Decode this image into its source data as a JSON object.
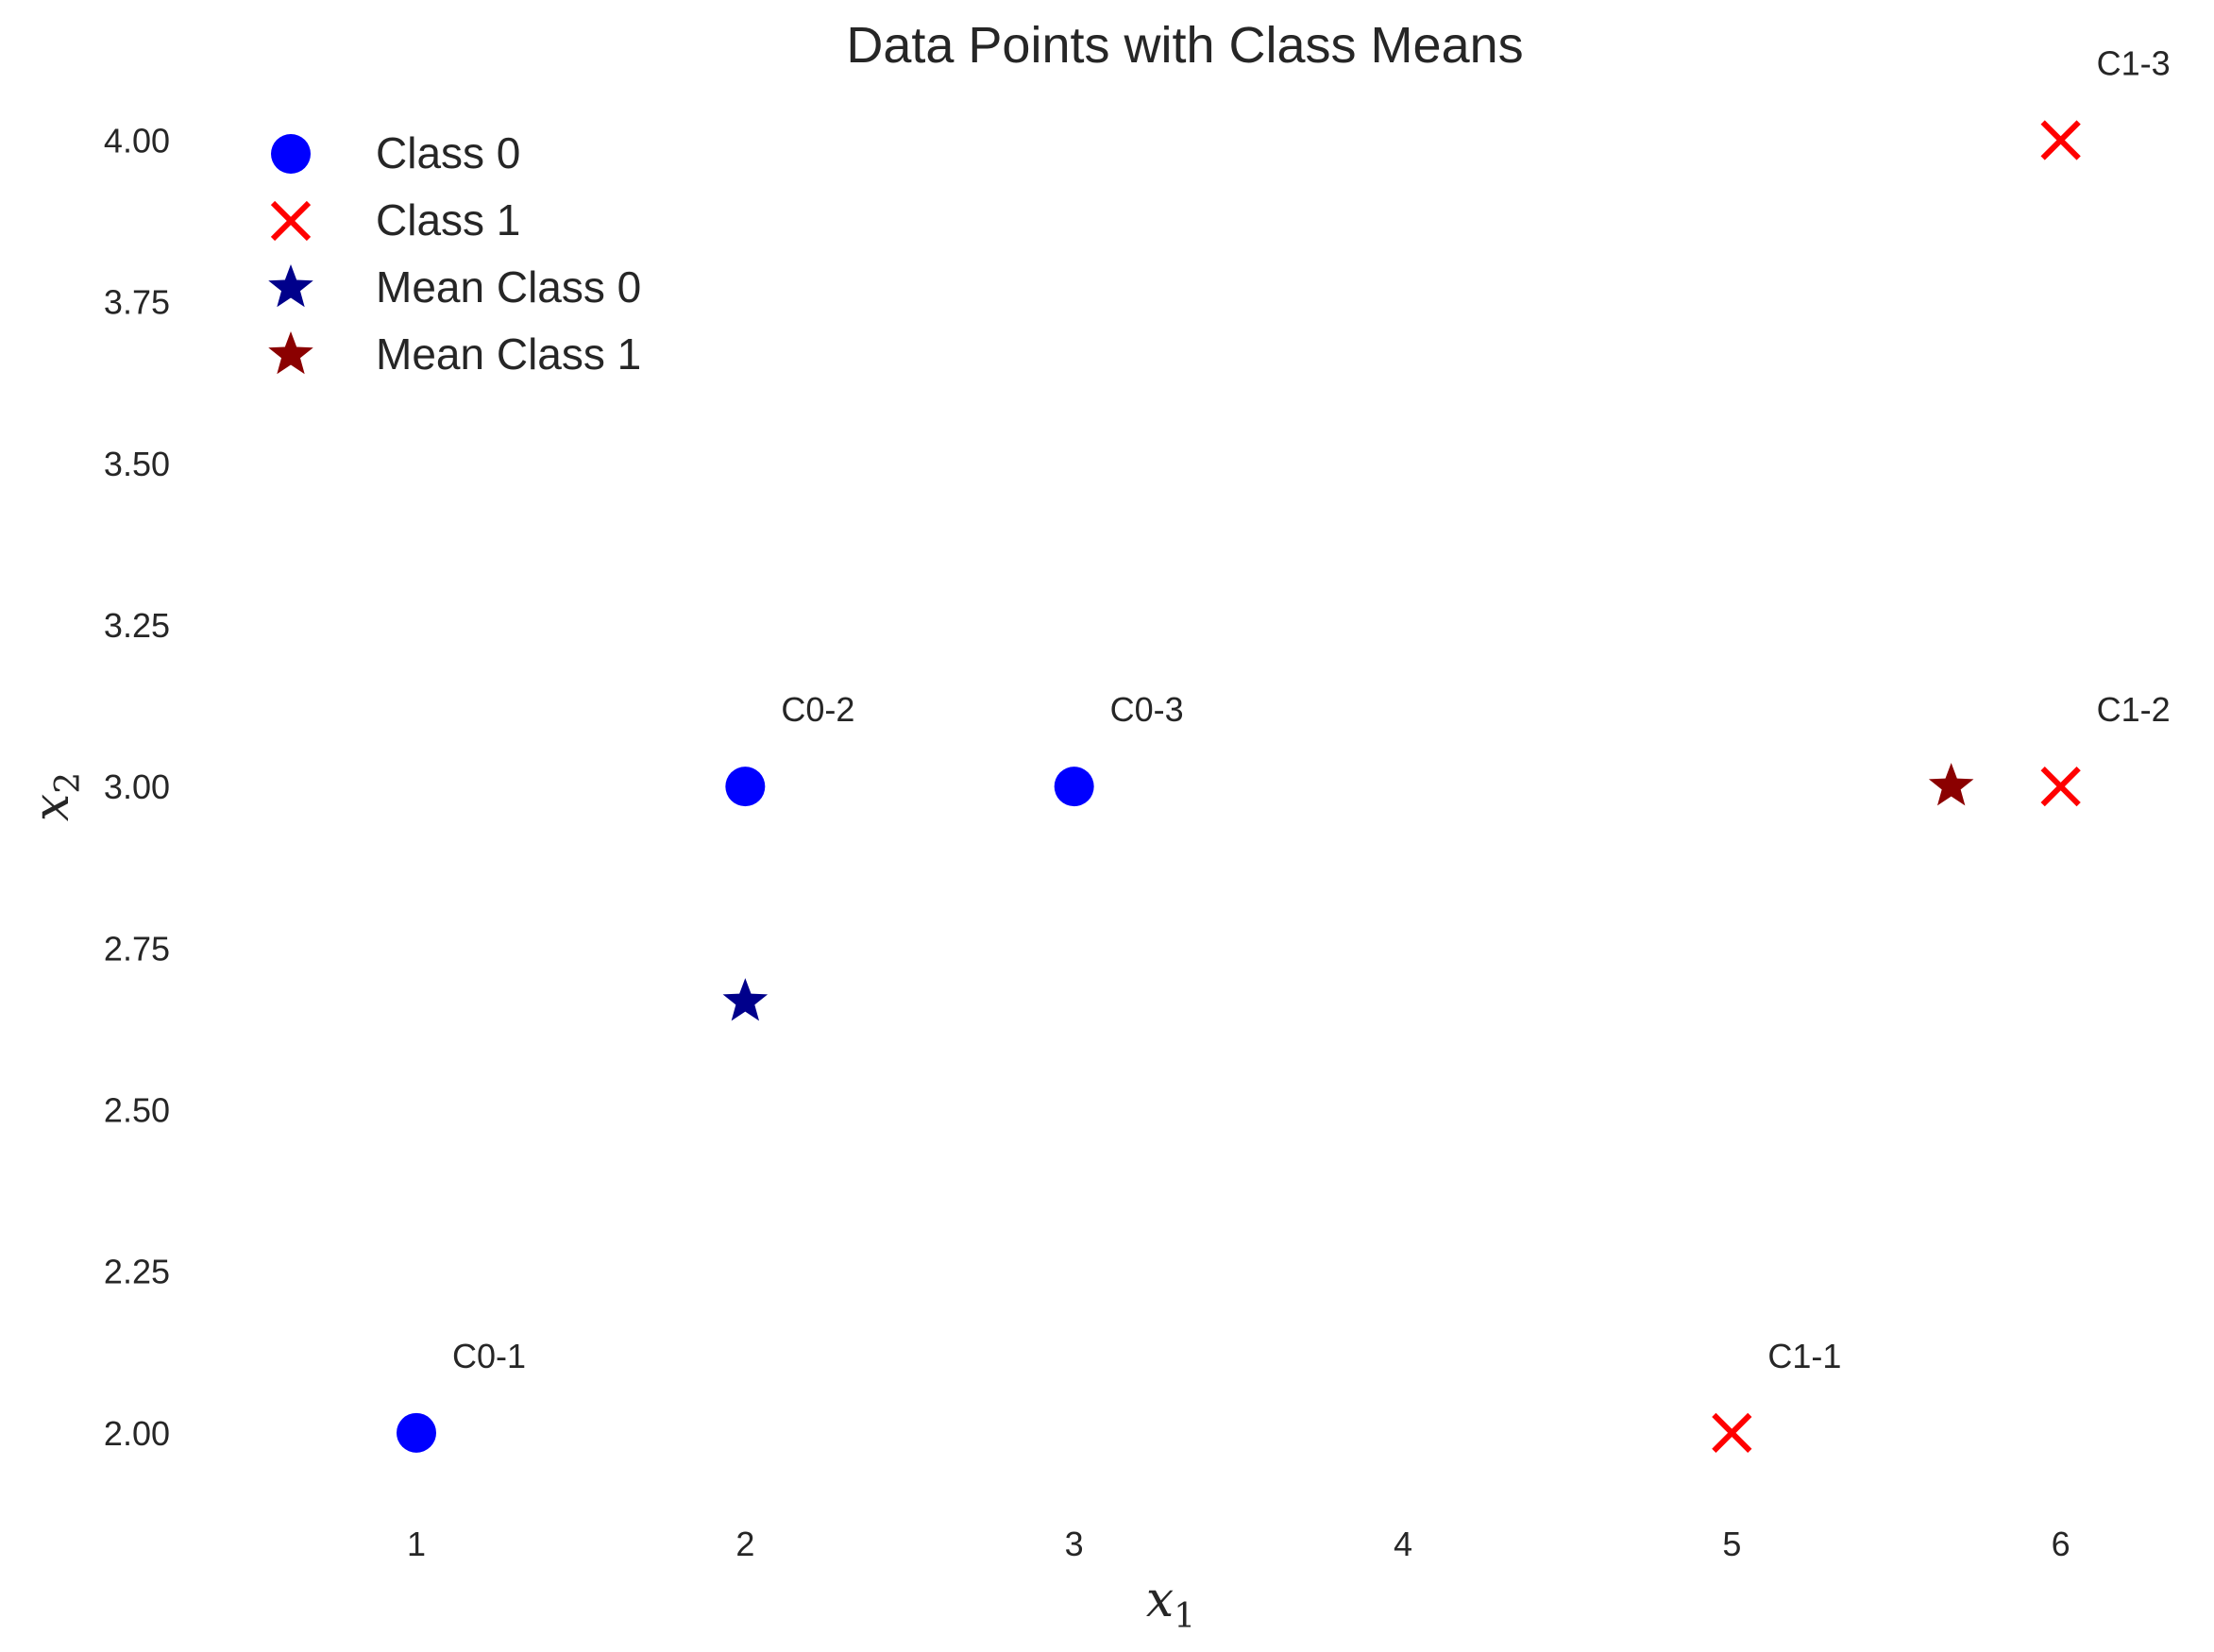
{
  "chart_data": {
    "type": "scatter",
    "title": "Data Points with Class Means",
    "xlabel": "x",
    "xlabel_sub": "1",
    "ylabel": "x",
    "ylabel_sub": "2",
    "xlim": [
      0.4,
      6.4
    ],
    "ylim": [
      1.88,
      4.1
    ],
    "xticks": [
      1,
      2,
      3,
      4,
      5,
      6
    ],
    "xtick_labels": [
      "1",
      "2",
      "3",
      "4",
      "5",
      "6"
    ],
    "yticks": [
      2.0,
      2.25,
      2.5,
      2.75,
      3.0,
      3.25,
      3.5,
      3.75,
      4.0
    ],
    "ytick_labels": [
      "2.00",
      "2.25",
      "2.50",
      "2.75",
      "3.00",
      "3.25",
      "3.50",
      "3.75",
      "4.00"
    ],
    "grid": false,
    "legend_position": "top-left",
    "series": [
      {
        "name": "Class 0",
        "marker": "circle",
        "color": "#0000ff",
        "points": [
          {
            "x": 1,
            "y": 2,
            "label": "C0-1"
          },
          {
            "x": 2,
            "y": 3,
            "label": "C0-2"
          },
          {
            "x": 3,
            "y": 3,
            "label": "C0-3"
          }
        ]
      },
      {
        "name": "Class 1",
        "marker": "x",
        "color": "#ff0000",
        "points": [
          {
            "x": 5,
            "y": 2,
            "label": "C1-1"
          },
          {
            "x": 6,
            "y": 3,
            "label": "C1-2"
          },
          {
            "x": 6,
            "y": 4,
            "label": "C1-3"
          }
        ]
      },
      {
        "name": "Mean Class 0",
        "marker": "star",
        "color": "#00008b",
        "points": [
          {
            "x": 2,
            "y": 2.667
          }
        ]
      },
      {
        "name": "Mean Class 1",
        "marker": "star",
        "color": "#8b0000",
        "points": [
          {
            "x": 5.667,
            "y": 3
          }
        ]
      }
    ]
  }
}
